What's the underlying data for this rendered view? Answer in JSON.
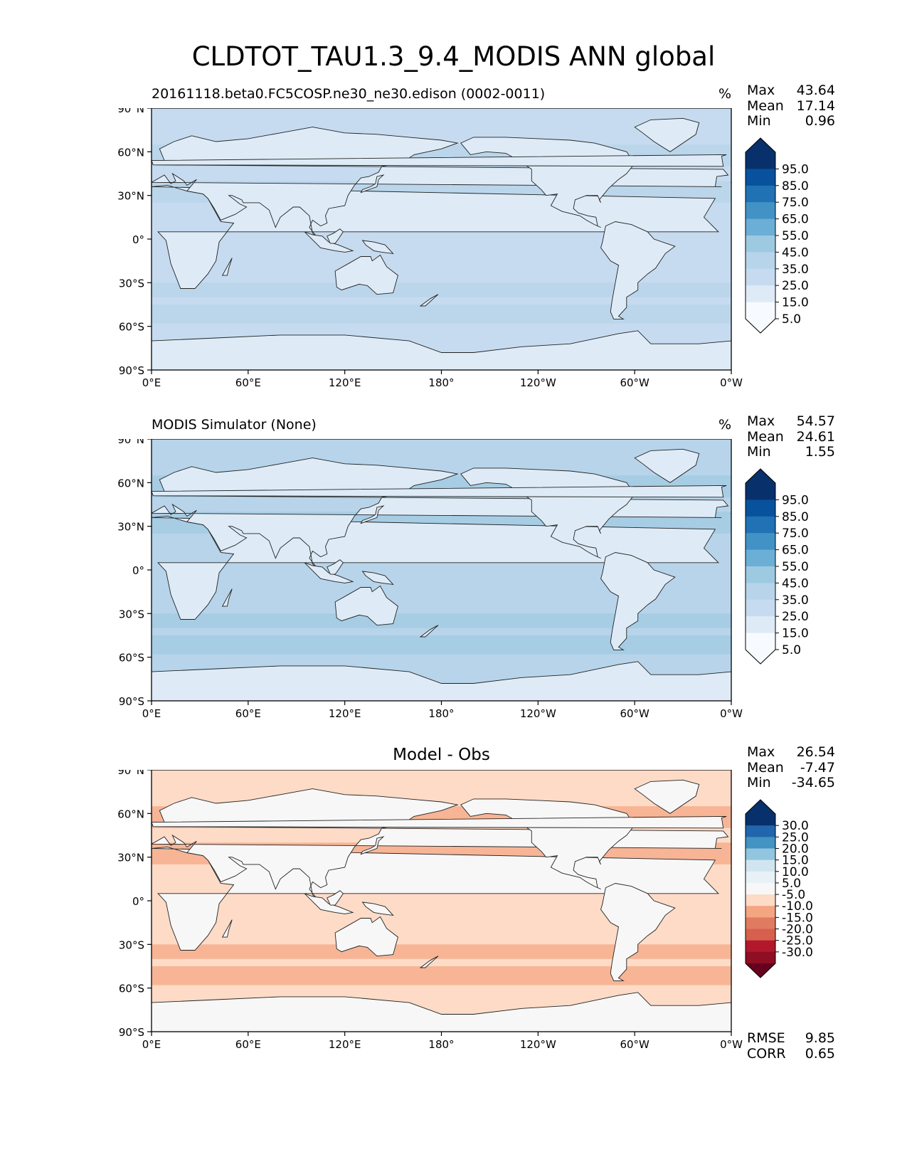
{
  "figure_title": "CLDTOT_TAU1.3_9.4_MODIS ANN global",
  "map_axes": {
    "lat_ticks": [
      "90°N",
      "60°N",
      "30°N",
      "0°",
      "30°S",
      "60°S",
      "90°S"
    ],
    "lon_ticks": [
      "0°E",
      "60°E",
      "120°E",
      "180°",
      "120°W",
      "60°W",
      "0°W"
    ]
  },
  "panels": [
    {
      "id": "test",
      "title_left": "20161118.beta0.FC5COSP.ne30_ne30.edison (0002-0011)",
      "title_center": "",
      "units": "%",
      "stats": [
        {
          "label": "Max",
          "value": "43.64"
        },
        {
          "label": "Mean",
          "value": "17.14"
        },
        {
          "label": "Min",
          "value": "0.96"
        }
      ],
      "colorbar": {
        "labels": [
          "95.0",
          "85.0",
          "75.0",
          "65.0",
          "55.0",
          "45.0",
          "35.0",
          "25.0",
          "15.0",
          "5.0"
        ],
        "colors": [
          "#08306b",
          "#08519c",
          "#2171b5",
          "#4292c6",
          "#6baed6",
          "#9ecae1",
          "#b7d4ea",
          "#c6dbef",
          "#deebf7",
          "#f7fbff"
        ],
        "extend": "both",
        "top_extend_color": "#08306b",
        "bottom_extend_color": "#f7fbff"
      },
      "field_colors": {
        "ocean": "#c6dbef",
        "land": "#deebf7",
        "band": "#b7d4ea"
      },
      "footer_stats": []
    },
    {
      "id": "reference",
      "title_left": "MODIS Simulator (None)",
      "title_center": "",
      "units": "%",
      "stats": [
        {
          "label": "Max",
          "value": "54.57"
        },
        {
          "label": "Mean",
          "value": "24.61"
        },
        {
          "label": "Min",
          "value": "1.55"
        }
      ],
      "colorbar": {
        "labels": [
          "95.0",
          "85.0",
          "75.0",
          "65.0",
          "55.0",
          "45.0",
          "35.0",
          "25.0",
          "15.0",
          "5.0"
        ],
        "colors": [
          "#08306b",
          "#08519c",
          "#2171b5",
          "#4292c6",
          "#6baed6",
          "#9ecae1",
          "#b7d4ea",
          "#c6dbef",
          "#deebf7",
          "#f7fbff"
        ],
        "extend": "both",
        "top_extend_color": "#08306b",
        "bottom_extend_color": "#f7fbff"
      },
      "field_colors": {
        "ocean": "#b7d4ea",
        "land": "#deebf7",
        "band": "#9ecae1"
      },
      "footer_stats": []
    },
    {
      "id": "difference",
      "title_left": "",
      "title_center": "Model - Obs",
      "units": "",
      "stats": [
        {
          "label": "Max",
          "value": "26.54"
        },
        {
          "label": "Mean",
          "value": "-7.47"
        },
        {
          "label": "Min",
          "value": "-34.65"
        }
      ],
      "colorbar": {
        "labels": [
          "30.0",
          "25.0",
          "20.0",
          "15.0",
          "10.0",
          "5.0",
          "-5.0",
          "-10.0",
          "-15.0",
          "-20.0",
          "-25.0",
          "-30.0"
        ],
        "colors": [
          "#08306b",
          "#2166ac",
          "#4393c3",
          "#92c5de",
          "#d1e5f0",
          "#e8f1f6",
          "#f7f7f7",
          "#fddbc7",
          "#f4a582",
          "#e07b62",
          "#d6604d",
          "#b2182b",
          "#8e0e23"
        ],
        "extend": "both",
        "top_extend_color": "#08306b",
        "bottom_extend_color": "#67001f"
      },
      "field_colors": {
        "ocean": "#fddbc7",
        "land": "#f7f7f7",
        "band": "#f4a582"
      },
      "footer_stats": [
        {
          "label": "RMSE",
          "value": "9.85"
        },
        {
          "label": "CORR",
          "value": "0.65"
        }
      ]
    }
  ]
}
